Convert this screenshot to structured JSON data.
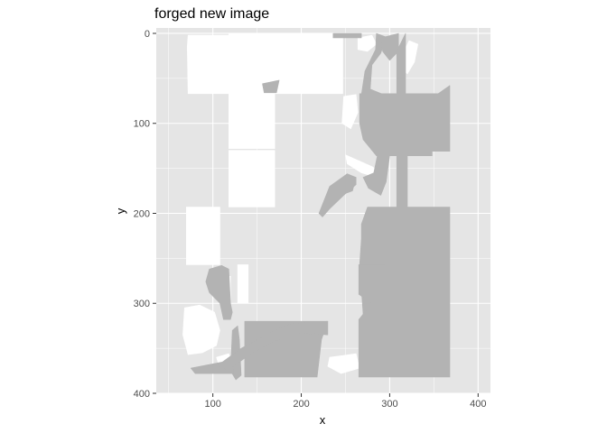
{
  "chart_data": {
    "type": "heatmap",
    "title": "forged new image",
    "xlabel": "x",
    "ylabel": "y",
    "xlim": [
      36,
      414
    ],
    "ylim": [
      400,
      -6
    ],
    "y_reversed": true,
    "x_ticks": [
      100,
      200,
      300,
      400
    ],
    "y_ticks": [
      0,
      100,
      200,
      300,
      400
    ],
    "grid": true,
    "colors": {
      "panel": "#e5e5e5",
      "grid": "#ffffff",
      "white_region": "#ffffff",
      "gray_region": "#b3b3b3",
      "tick_text": "#4d4d4d",
      "tick_mark": "#333333"
    },
    "regions": [
      {
        "fill": "white",
        "points": [
          [
            72,
            2
          ],
          [
            118,
            2
          ],
          [
            118,
            0
          ],
          [
            238,
            0
          ],
          [
            238,
            2
          ],
          [
            247,
            2
          ],
          [
            247,
            67
          ],
          [
            140,
            67
          ],
          [
            140,
            128
          ],
          [
            118,
            128
          ],
          [
            118,
            67
          ],
          [
            72,
            67
          ],
          [
            71,
            15
          ]
        ]
      },
      {
        "fill": "white",
        "points": [
          [
            140,
            67
          ],
          [
            170,
            67
          ],
          [
            170,
            128
          ],
          [
            140,
            128
          ]
        ]
      },
      {
        "fill": "white",
        "points": [
          [
            118,
            130
          ],
          [
            170,
            130
          ],
          [
            170,
            193
          ],
          [
            118,
            193
          ]
        ]
      },
      {
        "fill": "white",
        "points": [
          [
            70,
            193
          ],
          [
            108,
            193
          ],
          [
            108,
            257
          ],
          [
            70,
            257
          ]
        ]
      },
      {
        "fill": "white",
        "points": [
          [
            109,
            270
          ],
          [
            120,
            270
          ],
          [
            120,
            300
          ],
          [
            109,
            300
          ]
        ]
      },
      {
        "fill": "white",
        "points": [
          [
            128,
            257
          ],
          [
            140,
            257
          ],
          [
            140,
            300
          ],
          [
            128,
            300
          ]
        ]
      },
      {
        "fill": "white",
        "points": [
          [
            68,
            305
          ],
          [
            85,
            302
          ],
          [
            102,
            310
          ],
          [
            108,
            330
          ],
          [
            104,
            347
          ],
          [
            88,
            355
          ],
          [
            72,
            357
          ],
          [
            66,
            335
          ]
        ]
      },
      {
        "fill": "white",
        "points": [
          [
            264,
            5
          ],
          [
            280,
            2
          ],
          [
            285,
            12
          ],
          [
            275,
            20
          ],
          [
            264,
            18
          ]
        ]
      },
      {
        "fill": "white",
        "points": [
          [
            322,
            8
          ],
          [
            332,
            12
          ],
          [
            328,
            32
          ],
          [
            320,
            45
          ],
          [
            313,
            38
          ],
          [
            316,
            20
          ]
        ]
      },
      {
        "fill": "white",
        "points": [
          [
            248,
            70
          ],
          [
            262,
            68
          ],
          [
            264,
            88
          ],
          [
            256,
            106
          ],
          [
            246,
            100
          ]
        ]
      },
      {
        "fill": "white",
        "points": [
          [
            250,
            135
          ],
          [
            280,
            148
          ],
          [
            296,
            158
          ],
          [
            292,
            162
          ],
          [
            268,
            155
          ],
          [
            252,
            145
          ]
        ]
      },
      {
        "fill": "white",
        "points": [
          [
            232,
            360
          ],
          [
            262,
            356
          ],
          [
            266,
            372
          ],
          [
            245,
            378
          ],
          [
            230,
            370
          ]
        ]
      },
      {
        "fill": "white",
        "points": [
          [
            104,
            360
          ],
          [
            118,
            356
          ],
          [
            122,
            368
          ],
          [
            108,
            372
          ]
        ]
      },
      {
        "fill": "white",
        "points": [
          [
            200,
            350
          ],
          [
            215,
            345
          ],
          [
            220,
            354
          ],
          [
            205,
            358
          ]
        ]
      },
      {
        "fill": "white",
        "points": [
          [
            284,
            303
          ],
          [
            290,
            303
          ],
          [
            290,
            318
          ],
          [
            284,
            318
          ]
        ]
      },
      {
        "fill": "gray",
        "points": [
          [
            236,
            0
          ],
          [
            268,
            0
          ],
          [
            268,
            5
          ],
          [
            236,
            5
          ]
        ]
      },
      {
        "fill": "gray",
        "points": [
          [
            285,
            0
          ],
          [
            296,
            4
          ],
          [
            290,
            22
          ],
          [
            280,
            35
          ],
          [
            278,
            62
          ],
          [
            298,
            70
          ],
          [
            296,
            90
          ],
          [
            280,
            80
          ],
          [
            268,
            68
          ],
          [
            272,
            42
          ],
          [
            284,
            18
          ]
        ]
      },
      {
        "fill": "gray",
        "points": [
          [
            156,
            56
          ],
          [
            175,
            52
          ],
          [
            172,
            66
          ],
          [
            158,
            66
          ]
        ]
      },
      {
        "fill": "gray",
        "points": [
          [
            290,
            5
          ],
          [
            310,
            0
          ],
          [
            310,
            20
          ],
          [
            300,
            30
          ],
          [
            292,
            20
          ]
        ]
      },
      {
        "fill": "gray",
        "points": [
          [
            308,
            20
          ],
          [
            318,
            0
          ],
          [
            318,
            67
          ],
          [
            308,
            67
          ]
        ]
      },
      {
        "fill": "gray",
        "points": [
          [
            266,
            67
          ],
          [
            355,
            67
          ],
          [
            368,
            58
          ],
          [
            368,
            131
          ],
          [
            348,
            131
          ],
          [
            348,
            136
          ],
          [
            320,
            136
          ],
          [
            320,
            193
          ],
          [
            308,
            193
          ],
          [
            308,
            136
          ],
          [
            285,
            136
          ],
          [
            270,
            118
          ],
          [
            266,
            100
          ]
        ]
      },
      {
        "fill": "gray",
        "points": [
          [
            286,
            136
          ],
          [
            300,
            136
          ],
          [
            296,
            165
          ],
          [
            290,
            180
          ],
          [
            276,
            172
          ],
          [
            270,
            160
          ],
          [
            282,
            155
          ]
        ]
      },
      {
        "fill": "gray",
        "points": [
          [
            248,
            160
          ],
          [
            262,
            160
          ],
          [
            258,
            175
          ],
          [
            250,
            178
          ],
          [
            244,
            170
          ]
        ]
      },
      {
        "fill": "gray",
        "points": [
          [
            220,
            200
          ],
          [
            232,
            170
          ],
          [
            252,
            156
          ],
          [
            262,
            160
          ],
          [
            262,
            168
          ],
          [
            248,
            180
          ],
          [
            232,
            195
          ],
          [
            224,
            204
          ]
        ]
      },
      {
        "fill": "gray",
        "points": [
          [
            275,
            193
          ],
          [
            368,
            193
          ],
          [
            368,
            257
          ],
          [
            296,
            257
          ],
          [
            288,
            258
          ],
          [
            288,
            300
          ],
          [
            280,
            312
          ],
          [
            270,
            312
          ],
          [
            266,
            257
          ],
          [
            268,
            228
          ],
          [
            268,
            212
          ]
        ]
      },
      {
        "fill": "gray",
        "points": [
          [
            265,
            257
          ],
          [
            368,
            257
          ],
          [
            368,
            382
          ],
          [
            265,
            382
          ],
          [
            265,
            318
          ],
          [
            280,
            300
          ],
          [
            265,
            290
          ]
        ]
      },
      {
        "fill": "gray",
        "points": [
          [
            96,
            262
          ],
          [
            110,
            258
          ],
          [
            118,
            262
          ],
          [
            120,
            300
          ],
          [
            122,
            310
          ],
          [
            120,
            318
          ],
          [
            112,
            318
          ],
          [
            108,
            300
          ],
          [
            96,
            288
          ],
          [
            92,
            276
          ]
        ]
      },
      {
        "fill": "gray",
        "points": [
          [
            136,
            320
          ],
          [
            230,
            320
          ],
          [
            223,
            340
          ],
          [
            218,
            382
          ],
          [
            136,
            382
          ]
        ]
      },
      {
        "fill": "gray",
        "points": [
          [
            122,
            330
          ],
          [
            128,
            325
          ],
          [
            130,
            340
          ],
          [
            132,
            380
          ],
          [
            126,
            385
          ],
          [
            120,
            375
          ]
        ]
      },
      {
        "fill": "gray",
        "points": [
          [
            75,
            372
          ],
          [
            112,
            365
          ],
          [
            124,
            370
          ],
          [
            124,
            378
          ],
          [
            110,
            378
          ],
          [
            80,
            378
          ]
        ]
      },
      {
        "fill": "gray",
        "points": [
          [
            104,
            370
          ],
          [
            132,
            350
          ],
          [
            170,
            330
          ],
          [
            190,
            322
          ],
          [
            230,
            320
          ],
          [
            230,
            335
          ],
          [
            200,
            333
          ],
          [
            170,
            342
          ],
          [
            140,
            358
          ],
          [
            118,
            374
          ]
        ]
      }
    ]
  }
}
